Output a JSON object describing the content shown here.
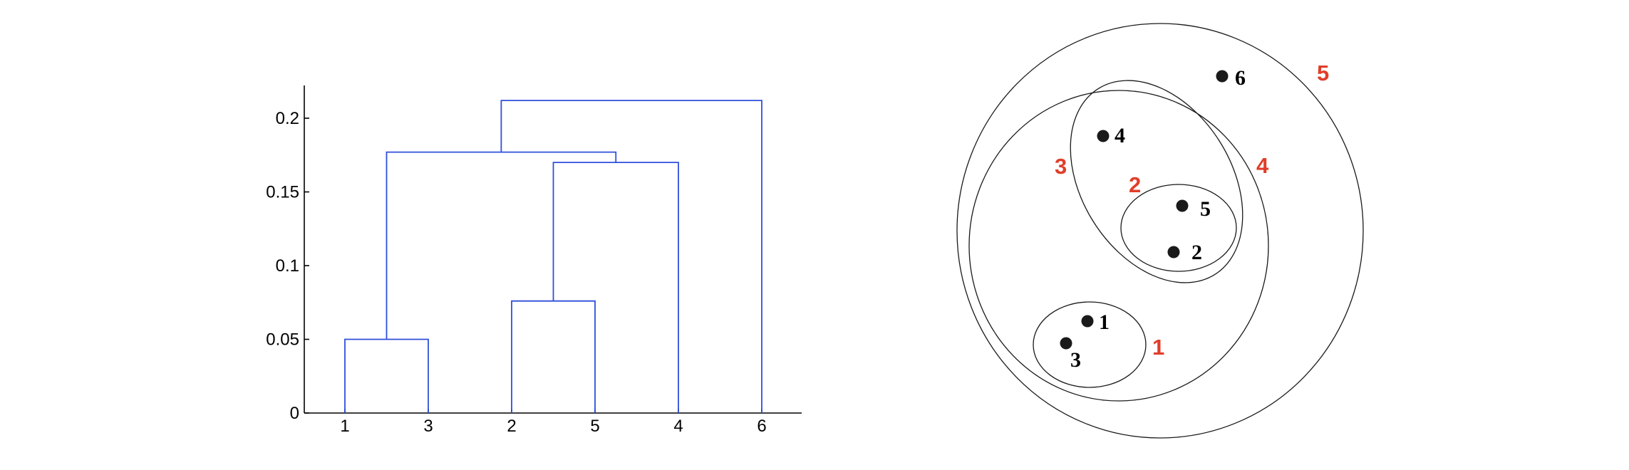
{
  "colors": {
    "background": "#ffffff",
    "dendrogram_line": "#2f4fdc",
    "axis": "#000000",
    "ellipse_stroke": "#1a1a1a",
    "point_fill": "#1a1a1a",
    "cluster_label": "#e03e2a"
  },
  "chart_data": {
    "type": "dendrogram",
    "title": "",
    "xlabel": "",
    "ylabel": "",
    "ylim": [
      0,
      0.22
    ],
    "y_ticks": [
      "0",
      "0.05",
      "0.1",
      "0.15",
      "0.2"
    ],
    "leaf_order": [
      "1",
      "3",
      "2",
      "5",
      "4",
      "6"
    ],
    "merges": [
      {
        "left": "1",
        "right": "3",
        "height": 0.05
      },
      {
        "left": "2",
        "right": "5",
        "height": 0.076
      },
      {
        "left": "{2,5}",
        "right": "4",
        "height": 0.17
      },
      {
        "left": "{1,3}",
        "right": "{2,5,4}",
        "height": 0.177
      },
      {
        "left": "{1,3,2,5,4}",
        "right": "6",
        "height": 0.212
      }
    ]
  },
  "nested_clusters": {
    "points": [
      "1",
      "2",
      "3",
      "4",
      "5",
      "6"
    ],
    "clusters": [
      {
        "label": "1",
        "members": [
          "1",
          "3"
        ]
      },
      {
        "label": "2",
        "members": [
          "2",
          "5"
        ]
      },
      {
        "label": "3",
        "members": [
          "2",
          "4",
          "5"
        ]
      },
      {
        "label": "4",
        "members": [
          "1",
          "2",
          "3",
          "4",
          "5"
        ]
      },
      {
        "label": "5",
        "members": [
          "1",
          "2",
          "3",
          "4",
          "5",
          "6"
        ]
      }
    ]
  }
}
